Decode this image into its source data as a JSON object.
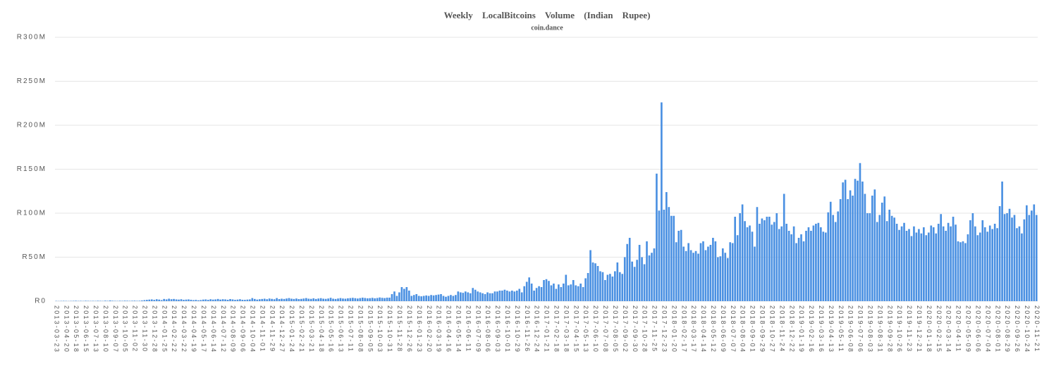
{
  "chart_data": {
    "type": "bar",
    "title": "Weekly LocalBitcoins Volume (Indian Rupee)",
    "subtitle": "coin.dance",
    "color": "#4a90e2",
    "grid": true,
    "ylim": [
      0,
      300
    ],
    "yticks": [
      {
        "value": 0,
        "label": "R0"
      },
      {
        "value": 50,
        "label": "R50M"
      },
      {
        "value": 100,
        "label": "R100M"
      },
      {
        "value": 150,
        "label": "R150M"
      },
      {
        "value": 200,
        "label": "R200M"
      },
      {
        "value": 250,
        "label": "R250M"
      },
      {
        "value": 300,
        "label": "R300M"
      }
    ],
    "categories": [
      "2013-03-23",
      null,
      null,
      null,
      "2013-04-20",
      null,
      null,
      null,
      "2013-05-18",
      null,
      null,
      null,
      "2013-06-15",
      null,
      null,
      null,
      "2013-07-13",
      null,
      null,
      null,
      "2013-08-10",
      null,
      null,
      null,
      "2013-09-07",
      null,
      null,
      null,
      "2013-10-05",
      null,
      null,
      null,
      "2013-11-02",
      null,
      null,
      null,
      "2013-11-30",
      null,
      null,
      null,
      "2013-12-28",
      null,
      null,
      null,
      "2014-01-25",
      null,
      null,
      null,
      "2014-02-22",
      null,
      null,
      null,
      "2014-03-22",
      null,
      null,
      null,
      "2014-04-19",
      null,
      null,
      null,
      "2014-05-17",
      null,
      null,
      null,
      "2014-06-14",
      null,
      null,
      null,
      "2014-07-12",
      null,
      null,
      null,
      "2014-08-09",
      null,
      null,
      null,
      "2014-09-06",
      null,
      null,
      null,
      "2014-10-04",
      null,
      null,
      null,
      "2014-11-01",
      null,
      null,
      null,
      "2014-11-29",
      null,
      null,
      null,
      "2014-12-27",
      null,
      null,
      null,
      "2015-01-24",
      null,
      null,
      null,
      "2015-02-21",
      null,
      null,
      null,
      "2015-03-21",
      null,
      null,
      null,
      "2015-04-18",
      null,
      null,
      null,
      "2015-05-16",
      null,
      null,
      null,
      "2015-06-13",
      null,
      null,
      null,
      "2015-07-11",
      null,
      null,
      null,
      "2015-08-08",
      null,
      null,
      null,
      "2015-09-05",
      null,
      null,
      null,
      "2015-10-03",
      null,
      null,
      null,
      "2015-10-31",
      null,
      null,
      null,
      "2015-11-28",
      null,
      null,
      null,
      "2015-12-26",
      null,
      null,
      null,
      "2016-01-23",
      null,
      null,
      null,
      "2016-02-20",
      null,
      null,
      null,
      "2016-03-19",
      null,
      null,
      null,
      "2016-04-16",
      null,
      null,
      null,
      "2016-05-14",
      null,
      null,
      null,
      "2016-06-11",
      null,
      null,
      null,
      "2016-07-09",
      null,
      null,
      null,
      "2016-08-06",
      null,
      null,
      null,
      "2016-09-03",
      null,
      null,
      null,
      "2016-10-01",
      null,
      null,
      null,
      "2016-10-29",
      null,
      null,
      null,
      "2016-11-26",
      null,
      null,
      null,
      "2016-12-24",
      null,
      null,
      null,
      "2017-01-21",
      null,
      null,
      null,
      "2017-02-18",
      null,
      null,
      null,
      "2017-03-18",
      null,
      null,
      null,
      "2017-04-15",
      null,
      null,
      null,
      "2017-05-13",
      null,
      null,
      null,
      "2017-06-10",
      null,
      null,
      null,
      "2017-07-08",
      null,
      null,
      null,
      "2017-08-05",
      null,
      null,
      null,
      "2017-09-02",
      null,
      null,
      null,
      "2017-09-30",
      null,
      null,
      null,
      "2017-10-28",
      null,
      null,
      null,
      "2017-11-25",
      null,
      null,
      null,
      "2017-12-23",
      null,
      null,
      null,
      "2018-01-20",
      null,
      null,
      null,
      "2018-02-17",
      null,
      null,
      null,
      "2018-03-17",
      null,
      null,
      null,
      "2018-04-14",
      null,
      null,
      null,
      "2018-05-12",
      null,
      null,
      null,
      "2018-06-09",
      null,
      null,
      null,
      "2018-07-07",
      null,
      null,
      null,
      "2018-08-04",
      null,
      null,
      null,
      "2018-09-01",
      null,
      null,
      null,
      "2018-09-29",
      null,
      null,
      null,
      "2018-10-27",
      null,
      null,
      null,
      "2018-11-24",
      null,
      null,
      null,
      "2018-12-22",
      null,
      null,
      null,
      "2019-01-19",
      null,
      null,
      null,
      "2019-02-16",
      null,
      null,
      null,
      "2019-03-16",
      null,
      null,
      null,
      "2019-04-13",
      null,
      null,
      null,
      "2019-05-11",
      null,
      null,
      null,
      "2019-06-08",
      null,
      null,
      null,
      "2019-07-06",
      null,
      null,
      null,
      "2019-08-03",
      null,
      null,
      null,
      "2019-08-31",
      null,
      null,
      null,
      "2019-09-28",
      null,
      null,
      null,
      "2019-10-26",
      null,
      null,
      null,
      "2019-11-23",
      null,
      null,
      null,
      "2019-12-21",
      null,
      null,
      null,
      "2020-01-18",
      null,
      null,
      null,
      "2020-02-15",
      null,
      null,
      null,
      "2020-03-14",
      null,
      null,
      null,
      "2020-04-11",
      null,
      null,
      null,
      "2020-05-09",
      null,
      null,
      null,
      "2020-06-06",
      null,
      null,
      null,
      "2020-07-04",
      null,
      null,
      null,
      "2020-08-01",
      null,
      null,
      null,
      "2020-08-29",
      null,
      null,
      null,
      "2020-09-26",
      null,
      null,
      null,
      "2020-10-24",
      null,
      null,
      null,
      "2020-11-21"
    ],
    "values": [
      0.3,
      0.2,
      0.3,
      0.4,
      0.3,
      0.2,
      0.3,
      0.4,
      0.5,
      0.3,
      0.4,
      0.3,
      0.5,
      0.4,
      0.3,
      0.4,
      0.3,
      0.5,
      0.4,
      0.3,
      0.6,
      0.4,
      0.8,
      0.5,
      0.4,
      0.3,
      0.5,
      0.4,
      0.6,
      0.5,
      0.4,
      0.5,
      0.6,
      0.4,
      0.5,
      0.8,
      1.2,
      1.5,
      1.8,
      2,
      1.5,
      2.2,
      1.8,
      1.2,
      2.5,
      2,
      2.8,
      2.2,
      2.5,
      2,
      1.8,
      2.2,
      1.5,
      1.8,
      2,
      1.6,
      1.2,
      1.5,
      1,
      1.3,
      1.8,
      2,
      1.5,
      2.2,
      1.8,
      2,
      2.5,
      1.8,
      2.2,
      2,
      1.6,
      2.4,
      2,
      1.5,
      1.8,
      2.2,
      1.6,
      1.5,
      1.8,
      2,
      3.5,
      2.5,
      1.8,
      2.2,
      2.5,
      2.8,
      2.2,
      3,
      2.6,
      2.2,
      3.5,
      2.4,
      2.8,
      2.5,
      3,
      3.5,
      2.8,
      2.5,
      3,
      2.4,
      2.6,
      3,
      3.5,
      2.8,
      2.6,
      3.2,
      2.5,
      3,
      3.4,
      2.8,
      2.6,
      3,
      3.8,
      2.8,
      2.5,
      3,
      3.5,
      3,
      2.8,
      3.2,
      3.5,
      3.8,
      3.4,
      3,
      3.5,
      4,
      3.6,
      3.2,
      3.4,
      3.8,
      3.2,
      3.6,
      4.2,
      3.8,
      3.5,
      4,
      4,
      8,
      11,
      6,
      10,
      16,
      14,
      16,
      12,
      6,
      7,
      8,
      6,
      5.5,
      6,
      6.5,
      6,
      7,
      6.5,
      7,
      7.5,
      8,
      6,
      5,
      6,
      7,
      6,
      7,
      11,
      10,
      9.5,
      11,
      10,
      9,
      15,
      13,
      11,
      10,
      9,
      8,
      10,
      9,
      9,
      11,
      11,
      12,
      12,
      13,
      12,
      11,
      12,
      11,
      12,
      14,
      10,
      17,
      22,
      27,
      20,
      12,
      15,
      17,
      16,
      24,
      25,
      23,
      18,
      20,
      14,
      19,
      16,
      20,
      30,
      18,
      19,
      24,
      18,
      17,
      20,
      16,
      26,
      32,
      58,
      44,
      43,
      40,
      34,
      33,
      24,
      30,
      31,
      28,
      34,
      44,
      33,
      31,
      50,
      65,
      72,
      45,
      39,
      47,
      64,
      50,
      42,
      68,
      52,
      55,
      60,
      145,
      103,
      226,
      104,
      124,
      107,
      97,
      97,
      67,
      80,
      81,
      62,
      57,
      66,
      58,
      55,
      57,
      54,
      66,
      68,
      58,
      62,
      64,
      72,
      68,
      50,
      51,
      60,
      55,
      49,
      67,
      66,
      96,
      75,
      100,
      110,
      91,
      84,
      86,
      79,
      62,
      107,
      88,
      94,
      92,
      96,
      96,
      87,
      90,
      100,
      82,
      85,
      122,
      88,
      80,
      76,
      85,
      66,
      72,
      76,
      68,
      80,
      84,
      80,
      86,
      88,
      89,
      84,
      79,
      78,
      101,
      113,
      98,
      90,
      102,
      116,
      135,
      138,
      116,
      126,
      120,
      139,
      137,
      157,
      136,
      122,
      100,
      100,
      120,
      127,
      90,
      98,
      112,
      119,
      91,
      104,
      97,
      95,
      88,
      81,
      85,
      89,
      80,
      82,
      74,
      85,
      78,
      82,
      77,
      84,
      75,
      78,
      86,
      84,
      77,
      88,
      99,
      85,
      80,
      89,
      85,
      96,
      87,
      68,
      67,
      68,
      66,
      76,
      92,
      100,
      85,
      75,
      78,
      92,
      84,
      79,
      86,
      82,
      88,
      83,
      108,
      136,
      99,
      100,
      105,
      95,
      98,
      83,
      85,
      77,
      93,
      109,
      98,
      103,
      110,
      98
    ]
  }
}
